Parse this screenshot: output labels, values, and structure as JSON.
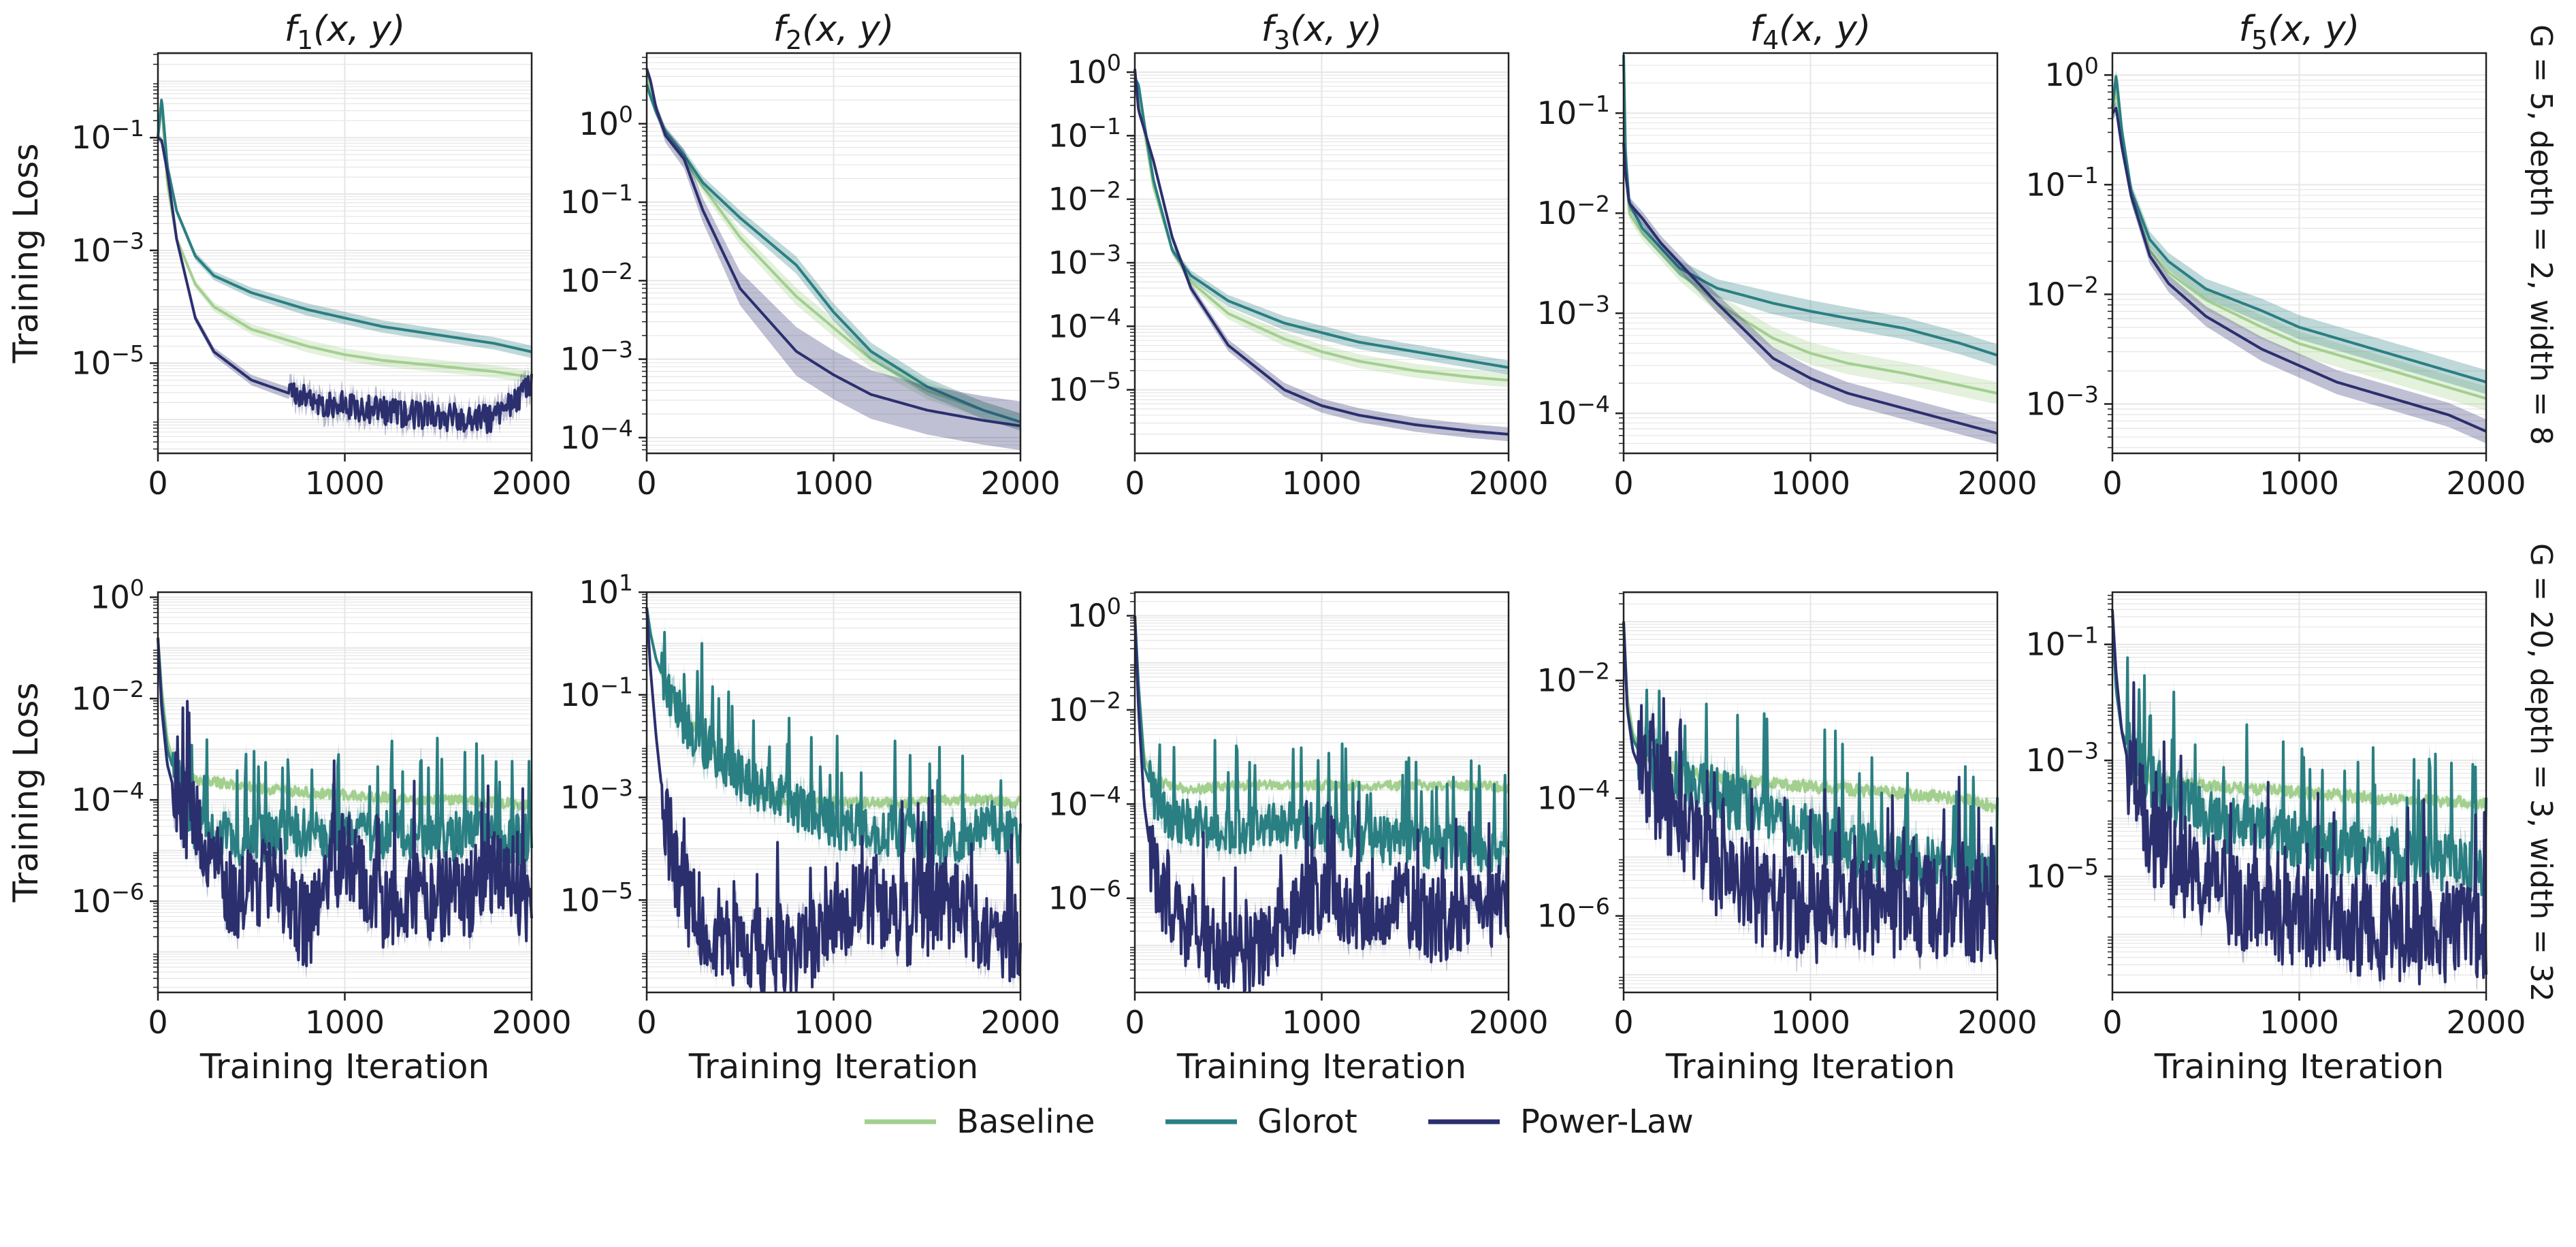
{
  "colors": {
    "baseline": "#a3cf8f",
    "glorot": "#2a7f82",
    "powerlaw": "#2b2f6e",
    "grid": "#e6e6e6",
    "axis": "#222222"
  },
  "legend": {
    "items": [
      {
        "label": "Baseline",
        "color": "#a3cf8f"
      },
      {
        "label": "Glorot",
        "color": "#2a7f82"
      },
      {
        "label": "Power-Law",
        "color": "#2b2f6e"
      }
    ]
  },
  "row_labels": [
    "G = 5, depth = 2, width = 8",
    "G = 20, depth = 3, width = 32"
  ],
  "chart_data": [
    {
      "type": "line",
      "title": "f1(x, y)",
      "row": 0,
      "col": 0,
      "ylabel": "Training Loss",
      "xlabel": "",
      "xlim": [
        0,
        2000
      ],
      "ylim_log10": [
        -6.6,
        0.5
      ],
      "xticks": [
        0,
        1000,
        2000
      ],
      "xtick_labels": [
        "0",
        "1000",
        "2000"
      ],
      "yticks_log10": [
        -1,
        -3,
        -5
      ],
      "ytick_labels": [
        "10^-1",
        "10^-3",
        "10^-5"
      ],
      "x": [
        0,
        20,
        50,
        100,
        200,
        300,
        500,
        800,
        1000,
        1200,
        1500,
        1800,
        2000
      ],
      "series": [
        {
          "name": "Baseline",
          "log10_loss": [
            -1,
            -0.4,
            -1.8,
            -2.8,
            -3.6,
            -4.0,
            -4.4,
            -4.7,
            -4.85,
            -4.95,
            -5.05,
            -5.15,
            -5.25
          ]
        },
        {
          "name": "Glorot",
          "log10_loss": [
            -1,
            -0.3,
            -1.5,
            -2.3,
            -3.1,
            -3.45,
            -3.75,
            -4.05,
            -4.2,
            -4.35,
            -4.5,
            -4.65,
            -4.8
          ]
        },
        {
          "name": "Power-Law",
          "log10_loss": [
            -1,
            -1.05,
            -1.6,
            -2.8,
            -4.2,
            -4.8,
            -5.3,
            -5.65,
            -5.75,
            -5.85,
            -5.95,
            -6.0,
            -5.4
          ]
        }
      ]
    },
    {
      "type": "line",
      "title": "f2(x, y)",
      "row": 0,
      "col": 1,
      "ylabel": "",
      "xlabel": "",
      "xlim": [
        0,
        2000
      ],
      "ylim_log10": [
        -4.2,
        0.9
      ],
      "xticks": [
        0,
        1000,
        2000
      ],
      "xtick_labels": [
        "0",
        "1000",
        "2000"
      ],
      "yticks_log10": [
        0,
        -1,
        -2,
        -3,
        -4
      ],
      "ytick_labels": [
        "10^0",
        "10^-1",
        "10^-2",
        "10^-3",
        "10^-4"
      ],
      "x": [
        0,
        20,
        50,
        100,
        200,
        300,
        500,
        800,
        1000,
        1200,
        1500,
        1800,
        2000
      ],
      "series": [
        {
          "name": "Baseline",
          "log10_loss": [
            0.6,
            0.4,
            0.2,
            -0.1,
            -0.45,
            -0.8,
            -1.45,
            -2.2,
            -2.6,
            -3.0,
            -3.4,
            -3.65,
            -3.8
          ]
        },
        {
          "name": "Glorot",
          "log10_loss": [
            0.5,
            0.35,
            0.15,
            -0.1,
            -0.4,
            -0.75,
            -1.2,
            -1.8,
            -2.4,
            -2.9,
            -3.35,
            -3.65,
            -3.8
          ]
        },
        {
          "name": "Power-Law",
          "log10_loss": [
            0.7,
            0.55,
            0.2,
            -0.15,
            -0.45,
            -1.1,
            -2.1,
            -2.9,
            -3.2,
            -3.45,
            -3.65,
            -3.78,
            -3.85
          ]
        }
      ]
    },
    {
      "type": "line",
      "title": "f3(x, y)",
      "row": 0,
      "col": 2,
      "ylabel": "",
      "xlabel": "",
      "xlim": [
        0,
        2000
      ],
      "ylim_log10": [
        -6.0,
        0.3
      ],
      "xticks": [
        0,
        1000,
        2000
      ],
      "xtick_labels": [
        "0",
        "1000",
        "2000"
      ],
      "yticks_log10": [
        0,
        -1,
        -2,
        -3,
        -4,
        -5
      ],
      "ytick_labels": [
        "10^0",
        "10^-1",
        "10^-2",
        "10^-3",
        "10^-4",
        "10^-5"
      ],
      "x": [
        0,
        20,
        50,
        100,
        200,
        300,
        500,
        800,
        1000,
        1200,
        1500,
        1800,
        2000
      ],
      "series": [
        {
          "name": "Baseline",
          "log10_loss": [
            -0.2,
            -0.3,
            -0.9,
            -1.8,
            -2.8,
            -3.3,
            -3.8,
            -4.2,
            -4.4,
            -4.55,
            -4.7,
            -4.8,
            -4.85
          ]
        },
        {
          "name": "Glorot",
          "log10_loss": [
            -0.1,
            -0.2,
            -0.8,
            -1.7,
            -2.8,
            -3.2,
            -3.6,
            -3.95,
            -4.1,
            -4.25,
            -4.4,
            -4.55,
            -4.65
          ]
        },
        {
          "name": "Power-Law",
          "log10_loss": [
            0.05,
            -0.6,
            -0.9,
            -1.4,
            -2.6,
            -3.4,
            -4.3,
            -5.0,
            -5.25,
            -5.4,
            -5.55,
            -5.65,
            -5.7
          ]
        }
      ]
    },
    {
      "type": "line",
      "title": "f4(x, y)",
      "row": 0,
      "col": 3,
      "ylabel": "",
      "xlabel": "",
      "xlim": [
        0,
        2000
      ],
      "ylim_log10": [
        -4.4,
        -0.4
      ],
      "xticks": [
        0,
        1000,
        2000
      ],
      "xtick_labels": [
        "0",
        "1000",
        "2000"
      ],
      "yticks_log10": [
        -1,
        -2,
        -3,
        -4
      ],
      "ytick_labels": [
        "10^-1",
        "10^-2",
        "10^-3",
        "10^-4"
      ],
      "x": [
        0,
        10,
        30,
        100,
        200,
        300,
        500,
        800,
        1000,
        1200,
        1500,
        1800,
        2000
      ],
      "series": [
        {
          "name": "Baseline",
          "log10_loss": [
            -0.5,
            -1.5,
            -2.0,
            -2.2,
            -2.4,
            -2.6,
            -2.9,
            -3.25,
            -3.4,
            -3.5,
            -3.6,
            -3.72,
            -3.8
          ]
        },
        {
          "name": "Glorot",
          "log10_loss": [
            -0.4,
            -1.4,
            -1.9,
            -2.15,
            -2.35,
            -2.55,
            -2.75,
            -2.9,
            -2.98,
            -3.05,
            -3.15,
            -3.3,
            -3.42
          ]
        },
        {
          "name": "Power-Law",
          "log10_loss": [
            -1.3,
            -1.6,
            -1.9,
            -2.05,
            -2.3,
            -2.5,
            -2.9,
            -3.45,
            -3.65,
            -3.8,
            -3.95,
            -4.1,
            -4.2
          ]
        }
      ]
    },
    {
      "type": "line",
      "title": "f5(x, y)",
      "row": 0,
      "col": 4,
      "ylabel": "",
      "xlabel": "",
      "xlim": [
        0,
        2000
      ],
      "ylim_log10": [
        -3.45,
        0.2
      ],
      "xticks": [
        0,
        1000,
        2000
      ],
      "xtick_labels": [
        "0",
        "1000",
        "2000"
      ],
      "yticks_log10": [
        0,
        -1,
        -2,
        -3
      ],
      "ytick_labels": [
        "10^0",
        "10^-1",
        "10^-2",
        "10^-3"
      ],
      "x": [
        0,
        20,
        50,
        100,
        200,
        300,
        500,
        800,
        1000,
        1200,
        1500,
        1800,
        2000
      ],
      "series": [
        {
          "name": "Baseline",
          "log10_loss": [
            -0.4,
            -0.1,
            -0.6,
            -1.1,
            -1.6,
            -1.8,
            -2.05,
            -2.3,
            -2.45,
            -2.55,
            -2.7,
            -2.85,
            -2.95
          ]
        },
        {
          "name": "Glorot",
          "log10_loss": [
            -0.3,
            0.0,
            -0.5,
            -1.05,
            -1.5,
            -1.7,
            -1.95,
            -2.15,
            -2.3,
            -2.4,
            -2.55,
            -2.7,
            -2.8
          ]
        },
        {
          "name": "Power-Law",
          "log10_loss": [
            -0.35,
            -0.3,
            -0.65,
            -1.1,
            -1.65,
            -1.9,
            -2.2,
            -2.5,
            -2.65,
            -2.8,
            -2.95,
            -3.1,
            -3.25
          ]
        }
      ]
    },
    {
      "type": "line",
      "title": "",
      "row": 1,
      "col": 0,
      "ylabel": "Training Loss",
      "xlabel": "Training Iteration",
      "xlim": [
        0,
        2000
      ],
      "ylim_log10": [
        -7.8,
        0.1
      ],
      "xticks": [
        0,
        1000,
        2000
      ],
      "xtick_labels": [
        "0",
        "1000",
        "2000"
      ],
      "yticks_log10": [
        0,
        -2,
        -4,
        -6
      ],
      "ytick_labels": [
        "10^0",
        "10^-2",
        "10^-4",
        "10^-6"
      ],
      "x": [
        0,
        20,
        50,
        100,
        200,
        400,
        600,
        800,
        1000,
        1200,
        1400,
        1600,
        1800,
        2000
      ],
      "series": [
        {
          "name": "Baseline",
          "log10_loss": [
            -0.8,
            -1.8,
            -2.8,
            -3.5,
            -3.6,
            -3.7,
            -3.8,
            -3.85,
            -3.9,
            -3.95,
            -4.0,
            -4.0,
            -4.05,
            -4.1
          ]
        },
        {
          "name": "Glorot",
          "log10_loss": [
            -0.8,
            -2.0,
            -3.0,
            -3.6,
            -4.5,
            -4.8,
            -4.7,
            -4.6,
            -4.75,
            -4.7,
            -4.65,
            -4.7,
            -4.75,
            -4.8
          ]
        },
        {
          "name": "Power-Law",
          "log10_loss": [
            -0.8,
            -2.2,
            -3.3,
            -4.0,
            -4.5,
            -6.0,
            -5.5,
            -6.5,
            -5.0,
            -6.2,
            -5.8,
            -6.0,
            -5.5,
            -6.0
          ]
        }
      ]
    },
    {
      "type": "line",
      "title": "",
      "row": 1,
      "col": 1,
      "ylabel": "",
      "xlabel": "Training Iteration",
      "xlim": [
        0,
        2000
      ],
      "ylim_log10": [
        -6.8,
        1.0
      ],
      "xticks": [
        0,
        1000,
        2000
      ],
      "xtick_labels": [
        "0",
        "1000",
        "2000"
      ],
      "yticks_log10": [
        1,
        -1,
        -3,
        -5
      ],
      "ytick_labels": [
        "10^1",
        "10^-1",
        "10^-3",
        "10^-5"
      ],
      "x": [
        0,
        20,
        50,
        100,
        200,
        300,
        400,
        600,
        800,
        1000,
        1200,
        1400,
        1600,
        1800,
        2000
      ],
      "series": [
        {
          "name": "Baseline",
          "log10_loss": [
            0.7,
            0.2,
            -0.3,
            -0.8,
            -1.4,
            -1.8,
            -2.3,
            -2.9,
            -3.1,
            -3.1,
            -3.1,
            -3.1,
            -3.05,
            -3.05,
            -3.1
          ]
        },
        {
          "name": "Glorot",
          "log10_loss": [
            0.7,
            0.2,
            -0.3,
            -0.8,
            -1.5,
            -1.9,
            -2.3,
            -2.8,
            -3.2,
            -3.5,
            -3.6,
            -3.7,
            -3.9,
            -3.5,
            -3.8
          ]
        },
        {
          "name": "Power-Law",
          "log10_loss": [
            0.7,
            -0.5,
            -1.8,
            -3.5,
            -4.9,
            -5.4,
            -5.7,
            -6.0,
            -6.2,
            -5.3,
            -5.0,
            -5.4,
            -5.0,
            -5.6,
            -5.8
          ]
        }
      ]
    },
    {
      "type": "line",
      "title": "",
      "row": 1,
      "col": 2,
      "ylabel": "",
      "xlabel": "Training Iteration",
      "xlim": [
        0,
        2000
      ],
      "ylim_log10": [
        -8.0,
        0.5
      ],
      "xticks": [
        0,
        1000,
        2000
      ],
      "xtick_labels": [
        "0",
        "1000",
        "2000"
      ],
      "yticks_log10": [
        0,
        -2,
        -4,
        -6
      ],
      "ytick_labels": [
        "10^0",
        "10^-2",
        "10^-4",
        "10^-6"
      ],
      "x": [
        0,
        20,
        50,
        100,
        200,
        300,
        400,
        600,
        800,
        1000,
        1200,
        1400,
        1600,
        1800,
        2000
      ],
      "series": [
        {
          "name": "Baseline",
          "log10_loss": [
            0.0,
            -1.5,
            -3.0,
            -3.5,
            -3.6,
            -3.7,
            -3.65,
            -3.6,
            -3.6,
            -3.6,
            -3.6,
            -3.6,
            -3.6,
            -3.6,
            -3.65
          ]
        },
        {
          "name": "Glorot",
          "log10_loss": [
            0.0,
            -1.5,
            -3.2,
            -3.8,
            -4.3,
            -4.4,
            -4.5,
            -4.6,
            -4.4,
            -4.5,
            -4.7,
            -4.8,
            -4.9,
            -4.9,
            -5.0
          ]
        },
        {
          "name": "Power-Law",
          "log10_loss": [
            0.0,
            -2.0,
            -4.0,
            -5.5,
            -6.3,
            -6.7,
            -7.0,
            -7.3,
            -6.5,
            -5.8,
            -6.2,
            -6.0,
            -6.5,
            -6.3,
            -6.0
          ]
        }
      ]
    },
    {
      "type": "line",
      "title": "",
      "row": 1,
      "col": 3,
      "ylabel": "",
      "xlabel": "Training Iteration",
      "xlim": [
        0,
        2000
      ],
      "ylim_log10": [
        -7.3,
        -0.5
      ],
      "xticks": [
        0,
        1000,
        2000
      ],
      "xtick_labels": [
        "0",
        "1000",
        "2000"
      ],
      "yticks_log10": [
        -2,
        -4,
        -6
      ],
      "ytick_labels": [
        "10^-2",
        "10^-4",
        "10^-6"
      ],
      "x": [
        0,
        20,
        50,
        100,
        200,
        400,
        600,
        800,
        1000,
        1200,
        1400,
        1600,
        1800,
        2000
      ],
      "series": [
        {
          "name": "Baseline",
          "log10_loss": [
            -1.0,
            -2.3,
            -2.9,
            -3.2,
            -3.4,
            -3.6,
            -3.7,
            -3.75,
            -3.8,
            -3.85,
            -3.9,
            -3.95,
            -4.0,
            -4.15
          ]
        },
        {
          "name": "Glorot",
          "log10_loss": [
            -1.0,
            -2.5,
            -3.0,
            -3.3,
            -3.5,
            -3.8,
            -4.1,
            -4.35,
            -4.6,
            -4.8,
            -5.0,
            -5.1,
            -5.3,
            -5.4
          ]
        },
        {
          "name": "Power-Law",
          "log10_loss": [
            -1.0,
            -2.5,
            -3.2,
            -3.6,
            -4.0,
            -4.8,
            -5.5,
            -5.8,
            -5.9,
            -5.9,
            -5.85,
            -5.8,
            -5.9,
            -5.85
          ]
        }
      ]
    },
    {
      "type": "line",
      "title": "",
      "row": 1,
      "col": 4,
      "ylabel": "",
      "xlabel": "Training Iteration",
      "xlim": [
        0,
        2000
      ],
      "ylim_log10": [
        -7.0,
        -0.1
      ],
      "xticks": [
        0,
        1000,
        2000
      ],
      "xtick_labels": [
        "0",
        "1000",
        "2000"
      ],
      "yticks_log10": [
        -1,
        -3,
        -5
      ],
      "ytick_labels": [
        "10^-1",
        "10^-3",
        "10^-5"
      ],
      "x": [
        0,
        20,
        50,
        100,
        200,
        400,
        600,
        800,
        1000,
        1200,
        1400,
        1600,
        1800,
        2000
      ],
      "series": [
        {
          "name": "Baseline",
          "log10_loss": [
            -0.5,
            -1.5,
            -2.5,
            -3.3,
            -3.35,
            -3.4,
            -3.45,
            -3.5,
            -3.55,
            -3.6,
            -3.65,
            -3.7,
            -3.7,
            -3.75
          ]
        },
        {
          "name": "Glorot",
          "log10_loss": [
            -0.5,
            -1.8,
            -2.5,
            -2.9,
            -3.3,
            -3.8,
            -4.1,
            -4.2,
            -4.4,
            -4.5,
            -4.6,
            -4.7,
            -4.75,
            -4.9
          ]
        },
        {
          "name": "Power-Law",
          "log10_loss": [
            -0.4,
            -1.5,
            -2.5,
            -3.3,
            -4.2,
            -4.9,
            -5.3,
            -5.6,
            -5.8,
            -5.8,
            -5.9,
            -5.95,
            -6.0,
            -6.0
          ]
        }
      ]
    }
  ]
}
